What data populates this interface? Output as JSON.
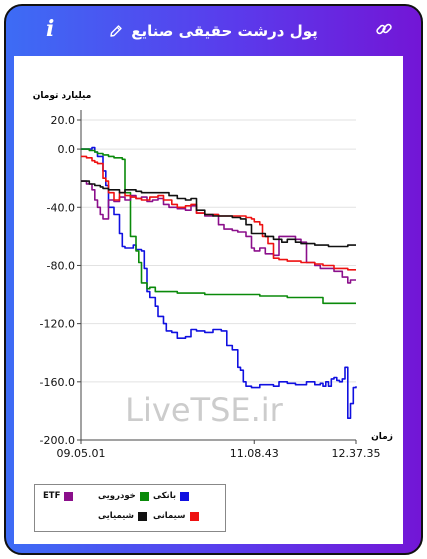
{
  "header": {
    "title": "پول درشت حقیقی صنایع",
    "info_icon": "i",
    "edit_icon": "pencil-icon",
    "link_icon": "link-icon"
  },
  "colors": {
    "banking": "#1010e0",
    "automotive": "#0a8a0a",
    "etf": "#8b0f8b",
    "cement": "#ee1111",
    "chemical": "#111111"
  },
  "watermark": "LiveTSE.ir",
  "chart_data": {
    "type": "line",
    "ylabel": "میلیارد تومان",
    "xlabel": "زمان",
    "ylim": [
      -200,
      20
    ],
    "yticks": [
      20.0,
      0.0,
      -40.0,
      -80.0,
      -120.0,
      -160.0,
      -200.0
    ],
    "ytick_labels": [
      "20.0",
      "0.0",
      "-40.0",
      "-80.0",
      "-120.0",
      "-160.0",
      "-200.0"
    ],
    "xlim": [
      0,
      100
    ],
    "xtick_labels": [
      "09.05.01",
      "11.08.43",
      "12.37.35"
    ],
    "xtick_positions": [
      0,
      63,
      100
    ],
    "grid": "horizontal",
    "legend_position": "bottom-left",
    "series": [
      {
        "name": "بانکی",
        "color_key": "banking",
        "x": [
          0,
          2,
          4,
          5,
          6,
          8,
          9,
          10,
          12,
          14,
          15,
          16,
          17,
          19,
          20,
          22,
          23,
          24,
          25,
          27,
          28,
          30,
          31,
          33,
          35,
          38,
          40,
          42,
          45,
          48,
          50,
          51,
          53,
          55,
          56,
          57,
          58,
          59,
          60,
          62,
          65,
          67,
          70,
          72,
          75,
          78,
          80,
          82,
          85,
          87,
          88,
          89,
          90,
          91,
          92,
          93,
          94,
          95,
          96,
          97,
          98,
          99,
          100
        ],
        "y": [
          0,
          0,
          1,
          -2,
          -5,
          -15,
          -25,
          -40,
          -45,
          -58,
          -67,
          -68,
          -68,
          -66,
          -69,
          -70,
          -82,
          -98,
          -102,
          -108,
          -115,
          -120,
          -125,
          -126,
          -130,
          -129,
          -124,
          -125,
          -126,
          -124,
          -124,
          -125,
          -135,
          -138,
          -138,
          -150,
          -152,
          -160,
          -163,
          -164,
          -162,
          -162,
          -163,
          -160,
          -161,
          -162,
          -162,
          -160,
          -162,
          -161,
          -163,
          -160,
          -163,
          -158,
          -157,
          -159,
          -160,
          -158,
          -150,
          -185,
          -175,
          -164,
          -163
        ]
      },
      {
        "name": "خودرویی",
        "color_key": "automotive",
        "x": [
          0,
          3,
          5,
          6,
          8,
          10,
          12,
          14,
          15,
          16,
          18,
          20,
          21,
          22,
          24,
          25,
          27,
          30,
          35,
          40,
          45,
          50,
          55,
          60,
          65,
          70,
          75,
          80,
          85,
          88,
          90,
          95,
          100
        ],
        "y": [
          0,
          -1,
          -2,
          -3,
          -4,
          -5,
          -6,
          -6,
          -7,
          -30,
          -60,
          -70,
          -78,
          -92,
          -96,
          -95,
          -98,
          -98,
          -99,
          -99,
          -100,
          -100,
          -100,
          -100,
          -101,
          -101,
          -102,
          -102,
          -102,
          -106,
          -106,
          -106,
          -106
        ]
      },
      {
        "name": "ETF",
        "color_key": "etf",
        "x": [
          0,
          2,
          4,
          5,
          6,
          7,
          8,
          10,
          12,
          14,
          16,
          18,
          20,
          22,
          24,
          26,
          28,
          30,
          32,
          35,
          38,
          40,
          42,
          45,
          48,
          50,
          52,
          55,
          57,
          60,
          62,
          63,
          65,
          67,
          70,
          72,
          75,
          78,
          80,
          82,
          85,
          87,
          90,
          92,
          95,
          97,
          98,
          100
        ],
        "y": [
          -22,
          -24,
          -28,
          -35,
          -40,
          -45,
          -48,
          -35,
          -36,
          -33,
          -35,
          -32,
          -34,
          -33,
          -36,
          -35,
          -34,
          -38,
          -40,
          -41,
          -42,
          -39,
          -44,
          -46,
          -45,
          -52,
          -55,
          -56,
          -57,
          -60,
          -68,
          -70,
          -68,
          -72,
          -73,
          -60,
          -60,
          -62,
          -64,
          -78,
          -80,
          -82,
          -82,
          -84,
          -88,
          -92,
          -90,
          -90
        ]
      },
      {
        "name": "سیمانی",
        "color_key": "cement",
        "x": [
          0,
          2,
          4,
          5,
          6,
          8,
          9,
          10,
          12,
          14,
          16,
          18,
          20,
          22,
          25,
          28,
          30,
          33,
          35,
          38,
          40,
          42,
          45,
          48,
          50,
          52,
          55,
          58,
          60,
          62,
          63,
          64,
          65,
          66,
          68,
          70,
          72,
          75,
          78,
          80,
          82,
          85,
          88,
          90,
          92,
          95,
          97,
          100
        ],
        "y": [
          -5,
          -6,
          -8,
          -9,
          -10,
          -20,
          -22,
          -30,
          -35,
          -30,
          -32,
          -33,
          -34,
          -35,
          -33,
          -32,
          -35,
          -38,
          -40,
          -39,
          -38,
          -44,
          -45,
          -45,
          -46,
          -46,
          -46,
          -46,
          -47,
          -48,
          -50,
          -50,
          -52,
          -60,
          -65,
          -75,
          -76,
          -77,
          -77,
          -78,
          -78,
          -79,
          -80,
          -80,
          -82,
          -82,
          -83,
          -83
        ]
      },
      {
        "name": "شیمیایی",
        "color_key": "chemical",
        "x": [
          0,
          3,
          5,
          7,
          8,
          10,
          12,
          14,
          16,
          18,
          20,
          22,
          25,
          28,
          30,
          32,
          35,
          38,
          40,
          42,
          45,
          48,
          50,
          52,
          55,
          58,
          60,
          62,
          64,
          65,
          67,
          70,
          73,
          75,
          78,
          80,
          82,
          85,
          88,
          90,
          92,
          95,
          97,
          100
        ],
        "y": [
          -22,
          -24,
          -25,
          -26,
          -27,
          -28,
          -28,
          -30,
          -28,
          -28,
          -29,
          -30,
          -30,
          -30,
          -30,
          -32,
          -34,
          -35,
          -34,
          -42,
          -45,
          -46,
          -46,
          -46,
          -47,
          -48,
          -52,
          -58,
          -58,
          -58,
          -60,
          -62,
          -64,
          -62,
          -64,
          -65,
          -65,
          -66,
          -66,
          -67,
          -67,
          -67,
          -66,
          -66
        ]
      }
    ]
  }
}
